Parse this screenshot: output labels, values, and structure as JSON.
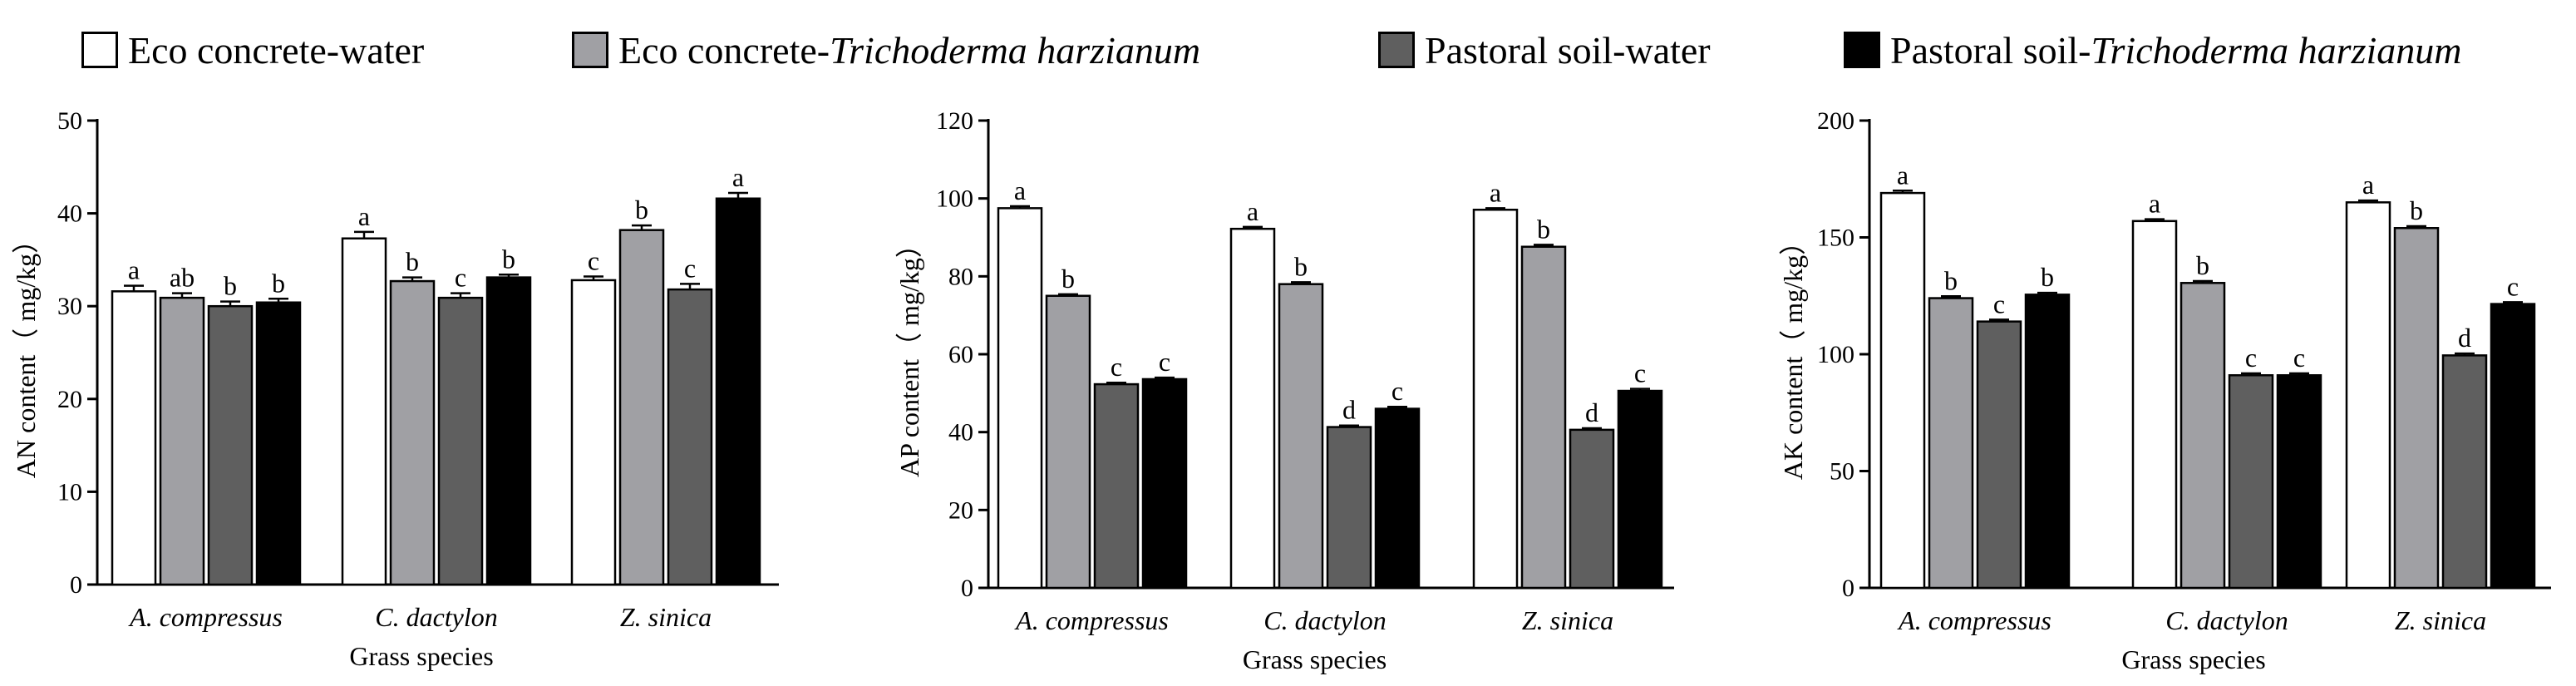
{
  "legend": [
    {
      "prefix": "Eco concrete-water",
      "italic": "",
      "color": "#ffffff"
    },
    {
      "prefix": "Eco concrete-",
      "italic": "Trichoderma harzianum",
      "color": "#a0a0a4"
    },
    {
      "prefix": "Pastoral soil-water",
      "italic": "",
      "color": "#5f5f5f"
    },
    {
      "prefix": "Pastoral soil-",
      "italic": "Trichoderma harzianum",
      "color": "#000000"
    }
  ],
  "chart_data": [
    {
      "type": "bar",
      "title": "",
      "xlabel": "Grass species",
      "ylabel": "AN content（ mg/kg）",
      "ylim": [
        0,
        50
      ],
      "yticks": [
        0,
        10,
        20,
        30,
        40,
        50
      ],
      "categories": [
        "A. compressus",
        "C. dactylon",
        "Z. sinica"
      ],
      "series": [
        {
          "name": "Eco concrete-water",
          "values": [
            31.6,
            37.3,
            32.8
          ],
          "errors": [
            0.6,
            0.7,
            0.4
          ],
          "labels": [
            "a",
            "a",
            "c"
          ]
        },
        {
          "name": "Eco concrete-Trichoderma harzianum",
          "values": [
            30.9,
            32.7,
            38.2
          ],
          "errors": [
            0.5,
            0.4,
            0.5
          ],
          "labels": [
            "ab",
            "b",
            "b"
          ]
        },
        {
          "name": "Pastoral soil-water",
          "values": [
            30.0,
            30.9,
            31.8
          ],
          "errors": [
            0.5,
            0.5,
            0.6
          ],
          "labels": [
            "b",
            "c",
            "c"
          ]
        },
        {
          "name": "Pastoral soil-Trichoderma harzianum",
          "values": [
            30.4,
            33.1,
            41.6
          ],
          "errors": [
            0.4,
            0.3,
            0.6
          ],
          "labels": [
            "b",
            "b",
            "a"
          ]
        }
      ]
    },
    {
      "type": "bar",
      "title": "",
      "xlabel": "Grass species",
      "ylabel": "AP content（ mg/kg）",
      "ylim": [
        0,
        120
      ],
      "yticks": [
        0,
        20,
        40,
        60,
        80,
        100,
        120
      ],
      "categories": [
        "A. compressus",
        "C. dactylon",
        "Z. sinica"
      ],
      "series": [
        {
          "name": "Eco concrete-water",
          "values": [
            97.5,
            92.2,
            97.1
          ],
          "errors": [
            0.5,
            0.5,
            0.4
          ],
          "labels": [
            "a",
            "a",
            "a"
          ]
        },
        {
          "name": "Eco concrete-Trichoderma harzianum",
          "values": [
            75.0,
            78.0,
            87.6
          ],
          "errors": [
            0.4,
            0.5,
            0.5
          ],
          "labels": [
            "b",
            "b",
            "b"
          ]
        },
        {
          "name": "Pastoral soil-water",
          "values": [
            52.3,
            41.3,
            40.6
          ],
          "errors": [
            0.4,
            0.4,
            0.4
          ],
          "labels": [
            "c",
            "d",
            "d"
          ]
        },
        {
          "name": "Pastoral soil-Trichoderma harzianum",
          "values": [
            53.6,
            46.0,
            50.6
          ],
          "errors": [
            0.4,
            0.5,
            0.5
          ],
          "labels": [
            "c",
            "c",
            "c"
          ]
        }
      ]
    },
    {
      "type": "bar",
      "title": "",
      "xlabel": "Grass species",
      "ylabel": "AK content（ mg/kg）",
      "ylim": [
        0,
        200
      ],
      "yticks": [
        0,
        50,
        100,
        150,
        200
      ],
      "categories": [
        "A. compressus",
        "C. dactylon",
        "Z. sinica"
      ],
      "series": [
        {
          "name": "Eco concrete-water",
          "values": [
            169.0,
            157.0,
            165.0
          ],
          "errors": [
            1.0,
            0.8,
            0.8
          ],
          "labels": [
            "a",
            "a",
            "a"
          ]
        },
        {
          "name": "Eco concrete-Trichoderma harzianum",
          "values": [
            124.0,
            130.5,
            154.0
          ],
          "errors": [
            0.8,
            0.8,
            0.8
          ],
          "labels": [
            "b",
            "b",
            "b"
          ]
        },
        {
          "name": "Pastoral soil-water",
          "values": [
            114.0,
            91.0,
            99.5
          ],
          "errors": [
            0.8,
            0.8,
            0.8
          ],
          "labels": [
            "c",
            "c",
            "d"
          ]
        },
        {
          "name": "Pastoral soil-Trichoderma harzianum",
          "values": [
            125.5,
            91.0,
            121.5
          ],
          "errors": [
            0.8,
            0.8,
            0.8
          ],
          "labels": [
            "b",
            "c",
            "c"
          ]
        }
      ]
    }
  ]
}
